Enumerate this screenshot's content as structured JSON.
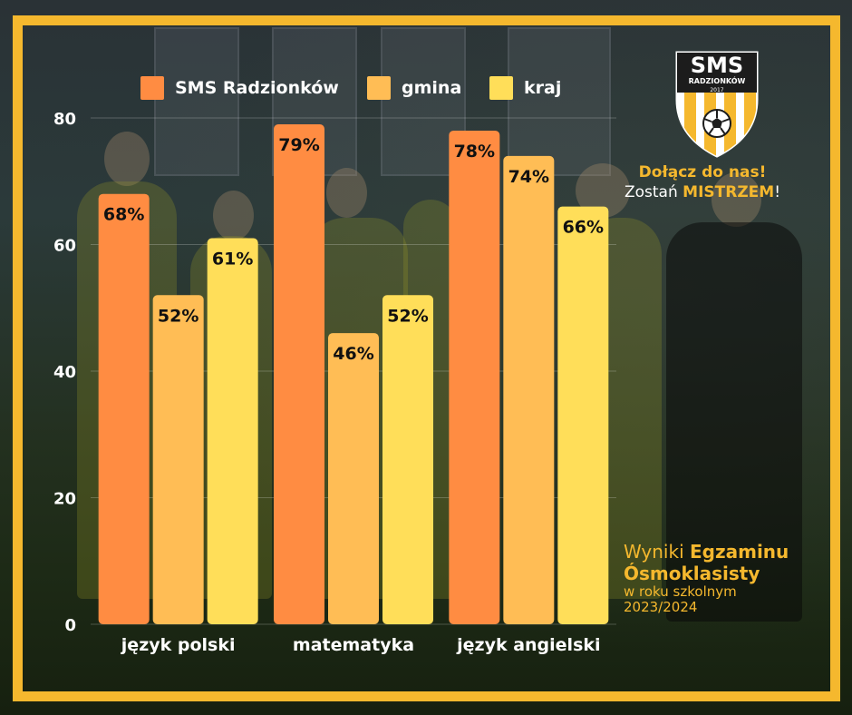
{
  "chart_data": {
    "type": "bar",
    "categories": [
      "język polski",
      "matematyka",
      "język angielski"
    ],
    "series": [
      {
        "name": "SMS Radzionków",
        "values": [
          68,
          79,
          78
        ],
        "color": "#ff8c42"
      },
      {
        "name": "gmina",
        "values": [
          52,
          46,
          74
        ],
        "color": "#ffbd55"
      },
      {
        "name": "kraj",
        "values": [
          61,
          52,
          66
        ],
        "color": "#ffde59"
      }
    ],
    "value_suffix": "%",
    "yticks": [
      0,
      20,
      40,
      60,
      80
    ],
    "ylim": [
      0,
      80
    ],
    "grid": true,
    "legend_position": "top"
  },
  "logo": {
    "title": "SMS",
    "subtitle": "RADZIONKÓW",
    "year": "2017",
    "primary_color": "#f5b82e",
    "secondary_color": "#ffffff",
    "icon": "soccer-ball-icon"
  },
  "cta": {
    "line1": "Dołącz do nas!",
    "line2_prefix": "Zostań ",
    "line2_highlight": "MISTRZEM",
    "line2_suffix": "!"
  },
  "caption": {
    "word1": "Wyniki ",
    "word2": "Egzaminu",
    "line2": "Ósmoklasisty",
    "line3": "w roku szkolnym",
    "line4": "2023/2024"
  },
  "colors": {
    "frame": "#f5b82e",
    "text": "#ffffff",
    "accent": "#f5b82e"
  }
}
